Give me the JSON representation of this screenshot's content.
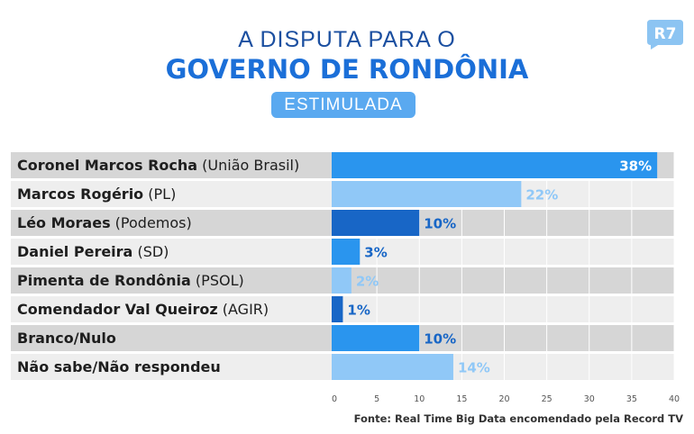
{
  "header": {
    "title_line1": "A DISPUTA PARA O",
    "title_line2": "GOVERNO DE RONDÔNIA",
    "badge": "ESTIMULADA",
    "logo_text": "R7"
  },
  "chart_data": {
    "type": "bar",
    "orientation": "horizontal",
    "categories": [
      {
        "name": "Coronel Marcos Rocha",
        "party": "(União Brasil)"
      },
      {
        "name": "Marcos Rogério",
        "party": "(PL)"
      },
      {
        "name": "Léo Moraes",
        "party": "(Podemos)"
      },
      {
        "name": "Daniel Pereira",
        "party": "(SD)"
      },
      {
        "name": "Pimenta de Rondônia",
        "party": "(PSOL)"
      },
      {
        "name": "Comendador Val Queiroz",
        "party": "(AGIR)"
      },
      {
        "name": "Branco/Nulo",
        "party": ""
      },
      {
        "name": "Não sabe/Não respondeu",
        "party": ""
      }
    ],
    "values": [
      38,
      22,
      10,
      3,
      2,
      1,
      10,
      14
    ],
    "data_labels": [
      "38%",
      "22%",
      "10%",
      "3%",
      "2%",
      "1%",
      "10%",
      "14%"
    ],
    "bar_colors": [
      "#2a95ee",
      "#90c8f7",
      "#1866c6",
      "#2a95ee",
      "#90c8f7",
      "#1866c6",
      "#2a95ee",
      "#90c8f7"
    ],
    "xlim": [
      0,
      40
    ],
    "xticks": [
      "0",
      "5",
      "10",
      "15",
      "20",
      "25",
      "30",
      "35",
      "40"
    ],
    "grid": true
  },
  "source": "Fonte: Real Time Big Data encomendado pela Record TV"
}
